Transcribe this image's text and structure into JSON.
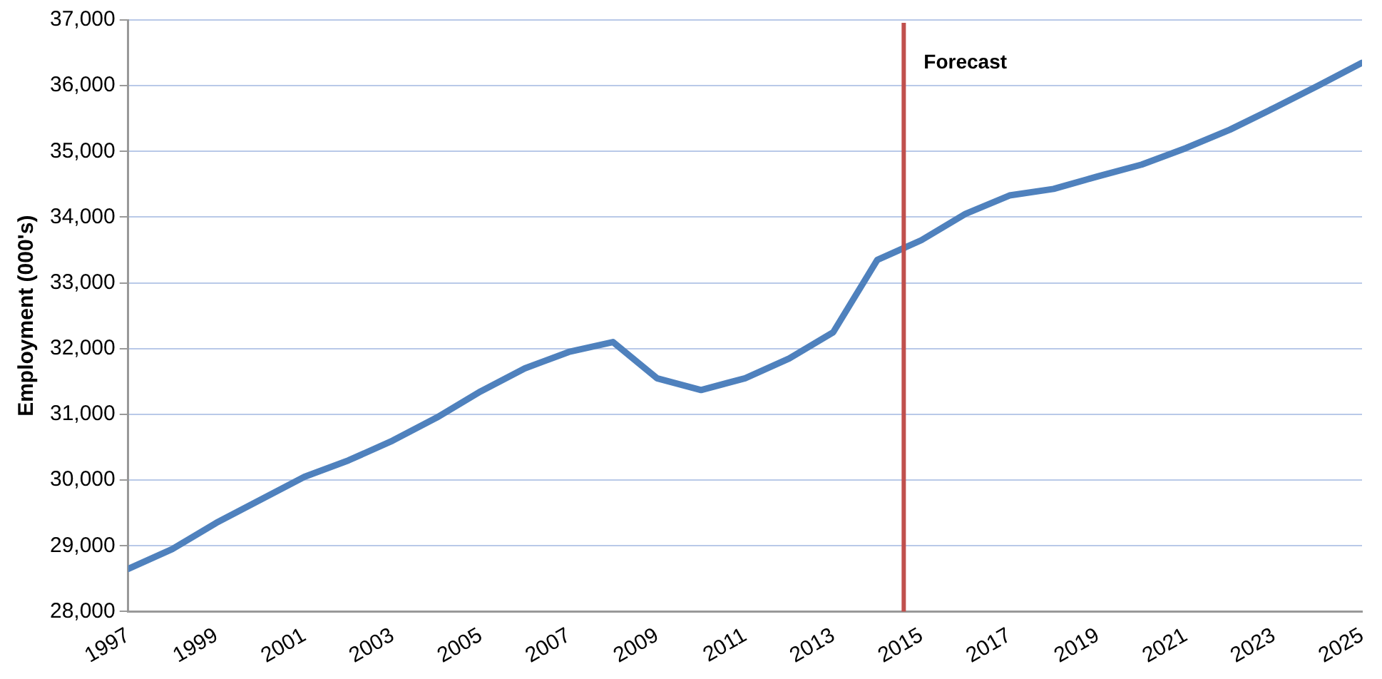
{
  "chart_data": {
    "type": "line",
    "ylabel": "Employment (000's)",
    "x": [
      1997,
      1998,
      1999,
      2000,
      2001,
      2002,
      2003,
      2004,
      2005,
      2006,
      2007,
      2008,
      2009,
      2010,
      2011,
      2012,
      2013,
      2014,
      2015,
      2016,
      2017,
      2018,
      2019,
      2020,
      2021,
      2022,
      2023,
      2024,
      2025
    ],
    "series": [
      {
        "color": "#4f81bd",
        "values": [
          28650,
          28950,
          29350,
          29700,
          30050,
          30300,
          30600,
          30950,
          31350,
          31700,
          31950,
          32100,
          31550,
          31370,
          31550,
          31850,
          32250,
          33350,
          33650,
          34050,
          34330,
          34430,
          34620,
          34800,
          35050,
          35330,
          35660,
          36000,
          36350
        ]
      }
    ],
    "xlim": [
      1997,
      2025
    ],
    "xticks": [
      1997,
      1999,
      2001,
      2003,
      2005,
      2007,
      2009,
      2011,
      2013,
      2015,
      2017,
      2019,
      2021,
      2023,
      2025
    ],
    "ylim": [
      28000,
      37000
    ],
    "yticks": [
      {
        "value": 28000,
        "label": "28,000"
      },
      {
        "value": 29000,
        "label": "29,000"
      },
      {
        "value": 30000,
        "label": "30,000"
      },
      {
        "value": 31000,
        "label": "31,000"
      },
      {
        "value": 32000,
        "label": "32,000"
      },
      {
        "value": 33000,
        "label": "33,000"
      },
      {
        "value": 34000,
        "label": "34,000"
      },
      {
        "value": 35000,
        "label": "35,000"
      },
      {
        "value": 36000,
        "label": "36,000"
      },
      {
        "value": 37000,
        "label": "37,000"
      }
    ],
    "ref_lines": [
      {
        "axis": "x",
        "value": 2014.6,
        "label": "Forecast",
        "color": "#c0504d"
      }
    ],
    "grid": "y",
    "legend": false,
    "marker": "none",
    "line_style": "solid"
  }
}
